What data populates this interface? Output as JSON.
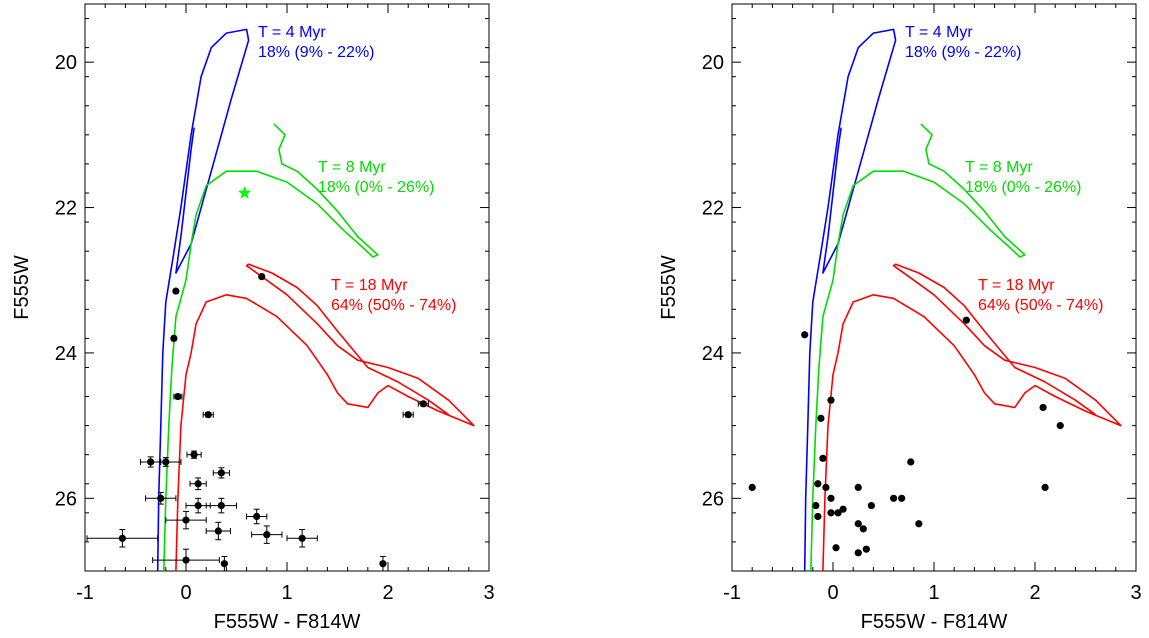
{
  "chart_data": [
    {
      "type": "scatter",
      "title": "",
      "xlabel": "F555W - F814W",
      "ylabel": "F555W",
      "xlim": [
        -1,
        3
      ],
      "ylim": [
        27,
        19.2
      ],
      "y_inverted": true,
      "xticks": [
        -1,
        0,
        1,
        2,
        3
      ],
      "xtick_labels": [
        "-1",
        "0",
        "1",
        "2",
        "3"
      ],
      "yticks": [
        20,
        22,
        24,
        26
      ],
      "ytick_labels": [
        "20",
        "22",
        "24",
        "26"
      ],
      "grid": false,
      "legend": "none",
      "isochrones": [
        {
          "name": "T = 4 Myr",
          "label": "T = 4 Myr",
          "fraction": "18% (9% - 22%)",
          "color": "#0000ff",
          "points": [
            [
              -0.28,
              27.0
            ],
            [
              -0.27,
              26.0
            ],
            [
              -0.25,
              25.0
            ],
            [
              -0.23,
              24.0
            ],
            [
              -0.2,
              23.3
            ],
            [
              -0.13,
              22.7
            ],
            [
              -0.05,
              22.0
            ],
            [
              0.05,
              21.0
            ],
            [
              0.15,
              20.2
            ],
            [
              0.25,
              19.8
            ],
            [
              0.4,
              19.6
            ],
            [
              0.6,
              19.55
            ],
            [
              0.62,
              19.7
            ],
            [
              0.45,
              20.5
            ],
            [
              0.25,
              21.5
            ],
            [
              0.05,
              22.5
            ],
            [
              -0.1,
              22.9
            ],
            [
              -0.05,
              22.4
            ],
            [
              0.0,
              21.8
            ],
            [
              0.05,
              21.2
            ],
            [
              0.08,
              20.9
            ]
          ]
        },
        {
          "name": "T = 8 Myr",
          "label": "T = 8 Myr",
          "fraction": "18% (0% - 26%)",
          "color": "#00dd00",
          "points": [
            [
              -0.22,
              27.0
            ],
            [
              -0.2,
              26.0
            ],
            [
              -0.17,
              25.0
            ],
            [
              -0.14,
              24.2
            ],
            [
              -0.1,
              23.5
            ],
            [
              0.0,
              23.0
            ],
            [
              0.05,
              22.5
            ],
            [
              0.1,
              22.1
            ],
            [
              0.2,
              21.7
            ],
            [
              0.4,
              21.5
            ],
            [
              0.7,
              21.5
            ],
            [
              1.0,
              21.65
            ],
            [
              1.3,
              21.95
            ],
            [
              1.55,
              22.3
            ],
            [
              1.75,
              22.55
            ],
            [
              1.85,
              22.68
            ],
            [
              1.9,
              22.65
            ],
            [
              1.7,
              22.4
            ],
            [
              1.5,
              22.05
            ],
            [
              1.3,
              21.75
            ],
            [
              1.1,
              21.5
            ],
            [
              0.95,
              21.4
            ],
            [
              0.92,
              21.2
            ],
            [
              0.98,
              21.0
            ],
            [
              0.87,
              20.85
            ]
          ]
        },
        {
          "name": "T = 18 Myr",
          "label": "T = 18 Myr",
          "fraction": "64% (50% - 74%)",
          "color": "#ff0000",
          "points": [
            [
              -0.1,
              27.0
            ],
            [
              -0.08,
              26.0
            ],
            [
              -0.05,
              25.0
            ],
            [
              0.0,
              24.3
            ],
            [
              0.05,
              24.0
            ],
            [
              0.1,
              23.6
            ],
            [
              0.2,
              23.3
            ],
            [
              0.4,
              23.2
            ],
            [
              0.6,
              23.25
            ],
            [
              0.9,
              23.5
            ],
            [
              1.2,
              23.9
            ],
            [
              1.4,
              24.3
            ],
            [
              1.5,
              24.55
            ],
            [
              1.6,
              24.7
            ],
            [
              1.8,
              24.75
            ],
            [
              1.9,
              24.55
            ],
            [
              2.0,
              24.45
            ],
            [
              2.2,
              24.6
            ],
            [
              2.5,
              24.8
            ],
            [
              2.85,
              25.0
            ],
            [
              2.6,
              24.65
            ],
            [
              2.3,
              24.35
            ],
            [
              2.0,
              24.2
            ],
            [
              1.7,
              24.1
            ],
            [
              1.5,
              23.9
            ],
            [
              1.3,
              23.6
            ],
            [
              1.0,
              23.2
            ],
            [
              0.8,
              23.0
            ],
            [
              0.6,
              22.8
            ],
            [
              0.62,
              22.78
            ],
            [
              0.85,
              22.9
            ],
            [
              1.1,
              23.1
            ],
            [
              1.3,
              23.35
            ],
            [
              1.5,
              23.7
            ],
            [
              1.8,
              24.2
            ],
            [
              2.1,
              24.4
            ],
            [
              2.4,
              24.65
            ],
            [
              2.6,
              24.85
            ]
          ]
        }
      ],
      "annotation_marker": {
        "type": "star",
        "x": 0.58,
        "y": 21.8,
        "color": "#00ff00"
      },
      "points": [
        {
          "x": -0.1,
          "y": 23.15,
          "xerr": 0.01,
          "yerr": 0.0
        },
        {
          "x": 0.75,
          "y": 22.95,
          "xerr": 0.0,
          "yerr": 0.0
        },
        {
          "x": -0.12,
          "y": 23.8,
          "xerr": 0.02,
          "yerr": 0.0
        },
        {
          "x": -0.08,
          "y": 24.6,
          "xerr": 0.04,
          "yerr": 0.03
        },
        {
          "x": 2.35,
          "y": 24.7,
          "xerr": 0.05,
          "yerr": 0.03
        },
        {
          "x": 0.22,
          "y": 24.85,
          "xerr": 0.05,
          "yerr": 0.03
        },
        {
          "x": 2.2,
          "y": 24.85,
          "xerr": 0.05,
          "yerr": 0.03
        },
        {
          "x": 0.08,
          "y": 25.4,
          "xerr": 0.07,
          "yerr": 0.05
        },
        {
          "x": -0.35,
          "y": 25.5,
          "xerr": 0.1,
          "yerr": 0.07
        },
        {
          "x": -0.2,
          "y": 25.5,
          "xerr": 0.15,
          "yerr": 0.06
        },
        {
          "x": 0.35,
          "y": 25.65,
          "xerr": 0.08,
          "yerr": 0.07
        },
        {
          "x": 0.12,
          "y": 25.8,
          "xerr": 0.08,
          "yerr": 0.08
        },
        {
          "x": -0.25,
          "y": 26.0,
          "xerr": 0.15,
          "yerr": 0.08
        },
        {
          "x": 0.12,
          "y": 26.1,
          "xerr": 0.12,
          "yerr": 0.1
        },
        {
          "x": 0.35,
          "y": 26.1,
          "xerr": 0.15,
          "yerr": 0.1
        },
        {
          "x": 0.7,
          "y": 26.25,
          "xerr": 0.1,
          "yerr": 0.1
        },
        {
          "x": 0.0,
          "y": 26.3,
          "xerr": 0.2,
          "yerr": 0.12
        },
        {
          "x": 0.32,
          "y": 26.45,
          "xerr": 0.12,
          "yerr": 0.12
        },
        {
          "x": 0.8,
          "y": 26.5,
          "xerr": 0.15,
          "yerr": 0.12
        },
        {
          "x": 1.15,
          "y": 26.55,
          "xerr": 0.15,
          "yerr": 0.12
        },
        {
          "x": -0.63,
          "y": 26.55,
          "xerr": 0.35,
          "yerr": 0.12
        },
        {
          "x": 0.0,
          "y": 26.85,
          "xerr": 0.33,
          "yerr": 0.15
        },
        {
          "x": 0.38,
          "y": 26.9,
          "xerr": 0.0,
          "yerr": 0.1
        },
        {
          "x": 1.95,
          "y": 26.9,
          "xerr": 0.0,
          "yerr": 0.1
        }
      ]
    },
    {
      "type": "scatter",
      "title": "",
      "xlabel": "F555W - F814W",
      "ylabel": "F555W",
      "xlim": [
        -1,
        3
      ],
      "ylim": [
        27,
        19.2
      ],
      "y_inverted": true,
      "xticks": [
        -1,
        0,
        1,
        2,
        3
      ],
      "xtick_labels": [
        "-1",
        "0",
        "1",
        "2",
        "3"
      ],
      "yticks": [
        20,
        22,
        24,
        26
      ],
      "ytick_labels": [
        "20",
        "22",
        "24",
        "26"
      ],
      "grid": false,
      "legend": "none",
      "isochrones": [
        {
          "name": "T = 4 Myr",
          "label": "T = 4 Myr",
          "fraction": "18% (9% - 22%)",
          "color": "#0000ff",
          "same_as_left": true
        },
        {
          "name": "T = 8 Myr",
          "label": "T = 8 Myr",
          "fraction": "18% (0% - 26%)",
          "color": "#00dd00",
          "same_as_left": true
        },
        {
          "name": "T = 18 Myr",
          "label": "T = 18 Myr",
          "fraction": "64% (50% - 74%)",
          "color": "#ff0000",
          "same_as_left": true
        }
      ],
      "points": [
        {
          "x": -0.28,
          "y": 23.75
        },
        {
          "x": 1.32,
          "y": 23.55
        },
        {
          "x": -0.02,
          "y": 24.65
        },
        {
          "x": 2.08,
          "y": 24.75
        },
        {
          "x": -0.12,
          "y": 24.9
        },
        {
          "x": 2.25,
          "y": 25.0
        },
        {
          "x": -0.1,
          "y": 25.45
        },
        {
          "x": 0.77,
          "y": 25.5
        },
        {
          "x": -0.8,
          "y": 25.85
        },
        {
          "x": -0.15,
          "y": 25.8
        },
        {
          "x": -0.07,
          "y": 25.85
        },
        {
          "x": 0.25,
          "y": 25.85
        },
        {
          "x": 2.1,
          "y": 25.85
        },
        {
          "x": -0.17,
          "y": 26.1
        },
        {
          "x": -0.02,
          "y": 26.0
        },
        {
          "x": 0.6,
          "y": 26.0
        },
        {
          "x": 0.68,
          "y": 26.0
        },
        {
          "x": 0.38,
          "y": 26.1
        },
        {
          "x": 0.1,
          "y": 26.15
        },
        {
          "x": -0.02,
          "y": 26.2
        },
        {
          "x": 0.05,
          "y": 26.2
        },
        {
          "x": -0.15,
          "y": 26.25
        },
        {
          "x": 0.25,
          "y": 26.35
        },
        {
          "x": 0.85,
          "y": 26.35
        },
        {
          "x": 0.3,
          "y": 26.42
        },
        {
          "x": 0.03,
          "y": 26.68
        },
        {
          "x": 0.33,
          "y": 26.7
        },
        {
          "x": 0.25,
          "y": 26.75
        }
      ]
    }
  ]
}
